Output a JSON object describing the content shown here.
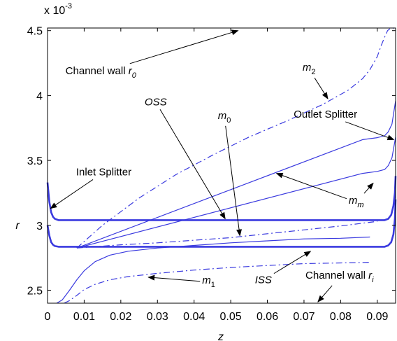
{
  "chart_data": {
    "type": "line",
    "xlabel": "z",
    "ylabel": "r",
    "y_exponent_label": "x 10",
    "y_exponent_power": "-3",
    "xlim": [
      0,
      0.095
    ],
    "ylim": [
      2.4,
      4.52
    ],
    "xticks": [
      "0",
      "0.01",
      "0.02",
      "0.03",
      "0.04",
      "0.05",
      "0.06",
      "0.07",
      "0.08",
      "0.09"
    ],
    "xtick_values": [
      0,
      0.01,
      0.02,
      0.03,
      0.04,
      0.05,
      0.06,
      0.07,
      0.08,
      0.09
    ],
    "yticks": [
      "2.5",
      "3",
      "3.5",
      "4",
      "4.5"
    ],
    "ytick_values": [
      2.5,
      3.0,
      3.5,
      4.0,
      4.5
    ],
    "grid": false,
    "line_color": "#3a3adf",
    "series": [
      {
        "id": "oss",
        "style": "solid-thick",
        "x": [
          0,
          0.0005,
          0.001,
          0.0015,
          0.002,
          0.003,
          0.05,
          0.092,
          0.093,
          0.0938,
          0.0944,
          0.0948,
          0.095
        ],
        "y": [
          3.33,
          3.18,
          3.1,
          3.065,
          3.05,
          3.04,
          3.04,
          3.04,
          3.05,
          3.08,
          3.15,
          3.25,
          3.38
        ]
      },
      {
        "id": "iss",
        "style": "solid-thick",
        "x": [
          0,
          0.0005,
          0.001,
          0.0015,
          0.002,
          0.003,
          0.05,
          0.092,
          0.093,
          0.0938,
          0.0944,
          0.0948,
          0.095
        ],
        "y": [
          3.0,
          2.92,
          2.87,
          2.85,
          2.84,
          2.835,
          2.835,
          2.835,
          2.845,
          2.87,
          2.93,
          3.05,
          3.2
        ]
      },
      {
        "id": "outlet-splitter-upper",
        "style": "solid",
        "x": [
          0.008,
          0.086,
          0.09,
          0.092,
          0.093,
          0.094,
          0.0945,
          0.095
        ],
        "y": [
          2.825,
          3.66,
          3.675,
          3.69,
          3.72,
          3.78,
          3.87,
          3.96
        ]
      },
      {
        "id": "outlet-splitter-lower",
        "style": "solid",
        "x": [
          0.008,
          0.086,
          0.09,
          0.092,
          0.093,
          0.094,
          0.0945,
          0.095
        ],
        "y": [
          2.825,
          3.4,
          3.415,
          3.43,
          3.46,
          3.52,
          3.6,
          3.68
        ]
      },
      {
        "id": "m1",
        "style": "solid",
        "x": [
          0.0025,
          0.004,
          0.006,
          0.008,
          0.01,
          0.013,
          0.017,
          0.022,
          0.03,
          0.04,
          0.05,
          0.06,
          0.07,
          0.08,
          0.088
        ],
        "y": [
          2.4,
          2.425,
          2.5,
          2.58,
          2.65,
          2.72,
          2.77,
          2.8,
          2.825,
          2.845,
          2.865,
          2.88,
          2.895,
          2.9,
          2.91
        ]
      },
      {
        "id": "m2",
        "style": "dash-dot",
        "x": [
          0.008,
          0.015,
          0.025,
          0.035,
          0.045,
          0.055,
          0.065,
          0.075,
          0.082,
          0.086,
          0.088,
          0.09,
          0.091,
          0.092,
          0.0928,
          0.0935,
          0.0945,
          0.095
        ],
        "y": [
          2.825,
          3.0,
          3.21,
          3.39,
          3.54,
          3.68,
          3.8,
          3.93,
          4.04,
          4.13,
          4.2,
          4.3,
          4.38,
          4.45,
          4.5,
          4.515,
          4.52,
          4.52
        ]
      },
      {
        "id": "m0",
        "style": "dash-dot",
        "x": [
          0.008,
          0.02,
          0.03,
          0.04,
          0.05,
          0.06,
          0.07,
          0.08,
          0.087,
          0.09
        ],
        "y": [
          2.825,
          2.85,
          2.865,
          2.885,
          2.905,
          2.935,
          2.965,
          2.995,
          3.02,
          3.03
        ]
      },
      {
        "id": "channel-wall-ri",
        "style": "dash-dot",
        "x": [
          0.0045,
          0.006,
          0.008,
          0.01,
          0.013,
          0.017,
          0.022,
          0.03,
          0.04,
          0.05,
          0.06,
          0.07,
          0.08,
          0.088
        ],
        "y": [
          2.4,
          2.42,
          2.46,
          2.505,
          2.545,
          2.58,
          2.605,
          2.63,
          2.655,
          2.675,
          2.69,
          2.705,
          2.71,
          2.715
        ]
      }
    ],
    "annotations": [
      {
        "id": "channel-wall-r0",
        "text": "Channel wall ",
        "sub": "r",
        "subscript": "0",
        "x": 0.0049,
        "y": 4.165,
        "arrow_to": [
          0.052,
          4.5
        ]
      },
      {
        "id": "m2",
        "text": "",
        "sub": "m",
        "subscript": "2",
        "x": 0.0696,
        "y": 4.19,
        "arrow_to": [
          0.0765,
          3.975
        ]
      },
      {
        "id": "oss",
        "text": "",
        "sub": "OSS",
        "subscript": "",
        "x": 0.0265,
        "y": 3.925,
        "arrow_to": [
          0.0485,
          3.05
        ]
      },
      {
        "id": "m0",
        "text": "",
        "sub": "m",
        "subscript": "0",
        "x": 0.0465,
        "y": 3.82,
        "arrow_to": [
          0.0525,
          2.92
        ]
      },
      {
        "id": "outlet-splitter",
        "text": "Outlet Splitter",
        "sub": "",
        "subscript": "",
        "x": 0.0672,
        "y": 3.83,
        "arrow_to": [
          0.0945,
          3.66
        ]
      },
      {
        "id": "inlet-splitter",
        "text": "Inlet Splitter",
        "sub": "",
        "subscript": "",
        "x": 0.0078,
        "y": 3.385,
        "arrow_to": [
          0.0008,
          3.13
        ]
      },
      {
        "id": "mm",
        "text": "",
        "sub": "m",
        "subscript": "m",
        "x": 0.0822,
        "y": 3.165,
        "arrow_to": [
          0.0625,
          3.4
        ],
        "arrow_to2": [
          0.0889,
          3.325
        ]
      },
      {
        "id": "m1",
        "text": "",
        "sub": "m",
        "subscript": "1",
        "x": 0.0422,
        "y": 2.55,
        "arrow_to": [
          0.0275,
          2.6
        ]
      },
      {
        "id": "iss",
        "text": "",
        "sub": "ISS",
        "subscript": "",
        "x": 0.0566,
        "y": 2.555,
        "arrow_to": [
          0.0718,
          2.8
        ]
      },
      {
        "id": "channel-wall-ri",
        "text": "Channel wall ",
        "sub": "r",
        "subscript": "i",
        "x": 0.0704,
        "y": 2.59,
        "arrow_to": [
          0.0738,
          2.41
        ]
      }
    ]
  }
}
